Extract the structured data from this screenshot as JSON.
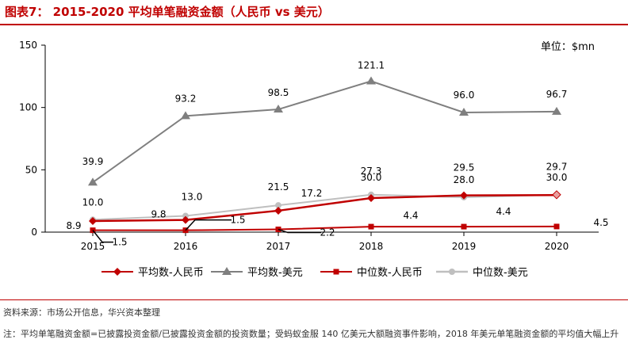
{
  "title": "图表7： 2015-2020 平均单笔融资金额（人民币 vs 美元）",
  "unit": "单位：$mn",
  "source": "资料来源：市场公开信息，华兴资本整理",
  "note": "注：平均单笔融资金额=已披露投资金额/已披露投资金额的投资数量；受蚂蚁金服 140 亿美元大额融资事件影响，2018 年美元单笔融资金额的平均值大幅上升",
  "colors": {
    "red": "#c00000",
    "gray": "#7f7f7f",
    "lightgray": "#bfbfbf",
    "title": "#c00000"
  },
  "chart_data": {
    "type": "line",
    "categories": [
      "2015",
      "2016",
      "2017",
      "2018",
      "2019",
      "2020"
    ],
    "ylim": [
      0,
      150
    ],
    "yticks": [
      0,
      50,
      100,
      150
    ],
    "grid": false,
    "legend_position": "bottom",
    "series": [
      {
        "name": "平均数-人民币",
        "marker": "diamond",
        "color": "#c00000",
        "values": [
          8.9,
          9.8,
          17.2,
          27.3,
          29.5,
          29.7
        ]
      },
      {
        "name": "平均数-美元",
        "marker": "triangle",
        "color": "#7f7f7f",
        "values": [
          39.9,
          93.2,
          98.5,
          121.1,
          96.0,
          96.7
        ]
      },
      {
        "name": "中位数-人民币",
        "marker": "square",
        "color": "#c00000",
        "values": [
          1.5,
          1.5,
          2.2,
          4.4,
          4.4,
          4.5
        ]
      },
      {
        "name": "中位数-美元",
        "marker": "circle",
        "color": "#bfbfbf",
        "values": [
          10.0,
          13.0,
          21.5,
          30.0,
          28.0,
          30.0
        ]
      }
    ],
    "data_labels": [
      [
        "8.9",
        "9.8",
        "17.2",
        "27.3",
        "29.5",
        "29.7"
      ],
      [
        "39.9",
        "93.2",
        "98.5",
        "121.1",
        "96.0",
        "96.7"
      ],
      [
        "1.5",
        "1.5",
        "2.2",
        "4.4",
        "4.4",
        "4.5"
      ],
      [
        "10.0",
        "13.0",
        "21.5",
        "30.0",
        "28.0",
        "30.0"
      ]
    ]
  }
}
